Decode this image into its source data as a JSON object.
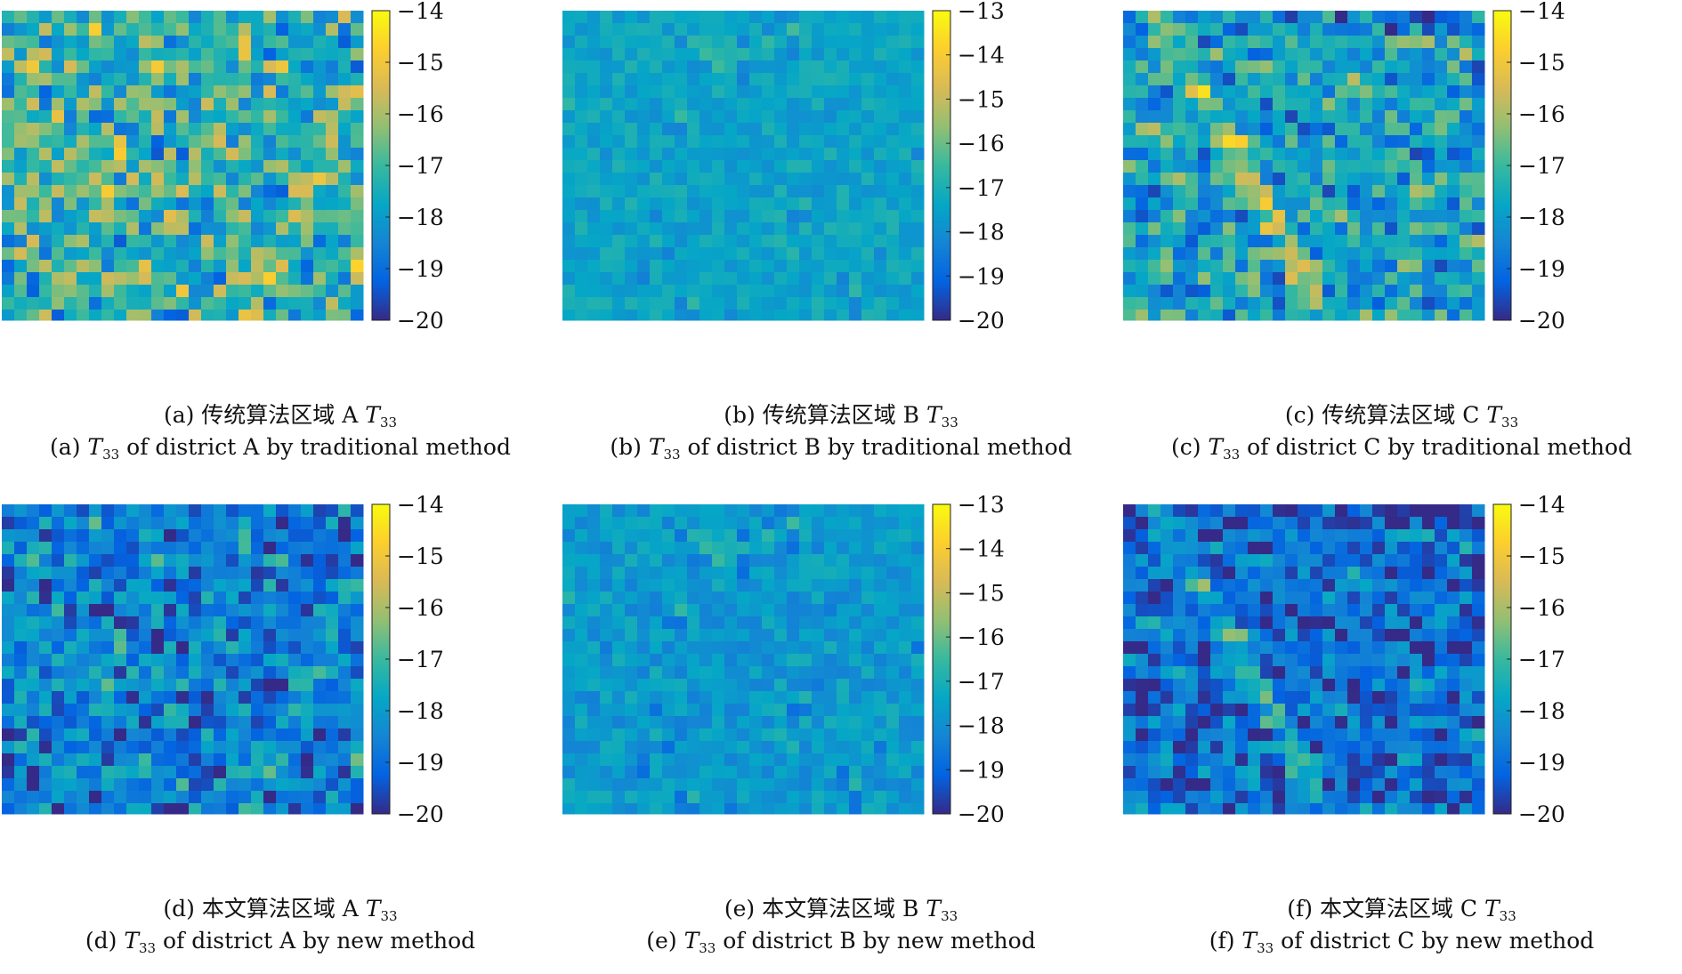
{
  "colormap": [
    "#352a87",
    "#0363e1",
    "#1485d4",
    "#06a7c6",
    "#38b99e",
    "#92bf73",
    "#d9ba56",
    "#fcce2e",
    "#f9fb0e"
  ],
  "chart_data": [
    {
      "type": "heatmap",
      "caption_cn": "(a) 传统算法区域 A",
      "caption_en_prefix": "(a)",
      "caption_en_suffix": "of district A by traditional method",
      "symbol": "T",
      "symbol_sub": "33",
      "colorbar_range": [
        -20,
        -14
      ],
      "colorbar_ticks": [
        "−14",
        "−15",
        "−16",
        "−17",
        "−18",
        "−19",
        "−20"
      ],
      "pattern": "grid-urban",
      "bias": 0.52,
      "contrast": 0.42,
      "angle_deg": -24,
      "seed": 11
    },
    {
      "type": "heatmap",
      "caption_cn": "(b) 传统算法区域 B",
      "caption_en_prefix": "(b)",
      "caption_en_suffix": "of district B by traditional method",
      "symbol": "T",
      "symbol_sub": "33",
      "colorbar_range": [
        -20,
        -13
      ],
      "colorbar_ticks": [
        "−13",
        "−14",
        "−15",
        "−16",
        "−17",
        "−18",
        "−19",
        "−20"
      ],
      "pattern": "sparse",
      "bias": 0.37,
      "contrast": 0.14,
      "angle_deg": -20,
      "seed": 23
    },
    {
      "type": "heatmap",
      "caption_cn": "(c) 传统算法区域 C",
      "caption_en_prefix": "(c)",
      "caption_en_suffix": "of district C by traditional method",
      "symbol": "T",
      "symbol_sub": "33",
      "colorbar_range": [
        -20,
        -14
      ],
      "colorbar_ticks": [
        "−14",
        "−15",
        "−16",
        "−17",
        "−18",
        "−19",
        "−20"
      ],
      "pattern": "diagonal-urban",
      "bias": 0.42,
      "contrast": 0.4,
      "angle_deg": -12,
      "seed": 37
    },
    {
      "type": "heatmap",
      "caption_cn": "(d) 本文算法区域 A",
      "caption_en_prefix": "(d)",
      "caption_en_suffix": "of district A by new method",
      "symbol": "T",
      "symbol_sub": "33",
      "colorbar_range": [
        -20,
        -14
      ],
      "colorbar_ticks": [
        "−14",
        "−15",
        "−16",
        "−17",
        "−18",
        "−19",
        "−20"
      ],
      "pattern": "grid-urban",
      "bias": 0.28,
      "contrast": 0.34,
      "angle_deg": -24,
      "seed": 11
    },
    {
      "type": "heatmap",
      "caption_cn": "(e) 本文算法区域 B",
      "caption_en_prefix": "(e)",
      "caption_en_suffix": "of district B by new method",
      "symbol": "T",
      "symbol_sub": "33",
      "colorbar_range": [
        -20,
        -13
      ],
      "colorbar_ticks": [
        "−13",
        "−14",
        "−15",
        "−16",
        "−17",
        "−18",
        "−19",
        "−20"
      ],
      "pattern": "sparse",
      "bias": 0.33,
      "contrast": 0.17,
      "angle_deg": -20,
      "seed": 23
    },
    {
      "type": "heatmap",
      "caption_cn": "(f) 本文算法区域 C",
      "caption_en_prefix": "(f)",
      "caption_en_suffix": "of district C by new method",
      "symbol": "T",
      "symbol_sub": "33",
      "colorbar_range": [
        -20,
        -14
      ],
      "colorbar_ticks": [
        "−14",
        "−15",
        "−16",
        "−17",
        "−18",
        "−19",
        "−20"
      ],
      "pattern": "diagonal-urban",
      "bias": 0.22,
      "contrast": 0.34,
      "angle_deg": -12,
      "seed": 37
    }
  ]
}
